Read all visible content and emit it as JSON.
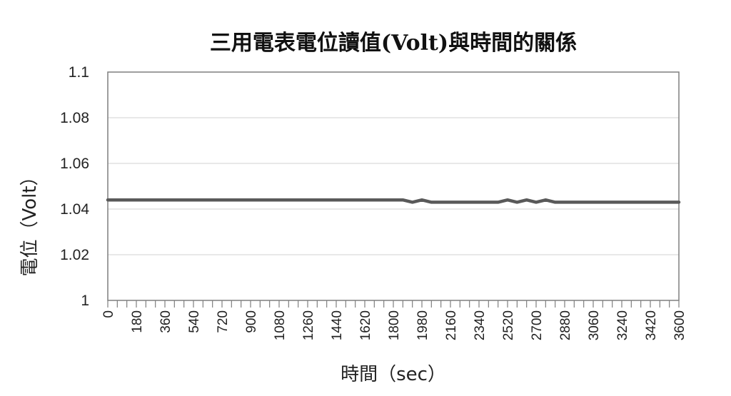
{
  "chart_data": {
    "type": "line",
    "title": "三用電表電位讀值(Volt)與時間的關係",
    "xlabel": "時間（sec）",
    "ylabel": "電位（Volt）",
    "ylim": [
      1,
      1.1
    ],
    "yticks": [
      "1",
      "1.02",
      "1.04",
      "1.06",
      "1.08",
      "1.1"
    ],
    "x_tick_labels": [
      "0",
      "180",
      "360",
      "540",
      "720",
      "900",
      "1080",
      "1260",
      "1440",
      "1620",
      "1800",
      "1980",
      "2160",
      "2340",
      "2520",
      "2700",
      "2880",
      "3060",
      "3240",
      "3420",
      "3600"
    ],
    "grid": "horizontal",
    "line_color": "#595959",
    "series": [
      {
        "x": [
          0,
          60,
          120,
          180,
          240,
          300,
          360,
          420,
          480,
          540,
          600,
          660,
          720,
          780,
          840,
          900,
          960,
          1020,
          1080,
          1140,
          1200,
          1260,
          1320,
          1380,
          1440,
          1500,
          1560,
          1620,
          1680,
          1740,
          1800,
          1860,
          1920,
          1980,
          2040,
          2100,
          2160,
          2220,
          2280,
          2340,
          2400,
          2460,
          2520,
          2580,
          2640,
          2700,
          2760,
          2820,
          2880,
          2940,
          3000,
          3060,
          3120,
          3180,
          3240,
          3300,
          3360,
          3420,
          3480,
          3540,
          3600
        ],
        "values": [
          1.044,
          1.044,
          1.044,
          1.044,
          1.044,
          1.044,
          1.044,
          1.044,
          1.044,
          1.044,
          1.044,
          1.044,
          1.044,
          1.044,
          1.044,
          1.044,
          1.044,
          1.044,
          1.044,
          1.044,
          1.044,
          1.044,
          1.044,
          1.044,
          1.044,
          1.044,
          1.044,
          1.044,
          1.044,
          1.044,
          1.044,
          1.044,
          1.043,
          1.044,
          1.043,
          1.043,
          1.043,
          1.043,
          1.043,
          1.043,
          1.043,
          1.043,
          1.044,
          1.043,
          1.044,
          1.043,
          1.044,
          1.043,
          1.043,
          1.043,
          1.043,
          1.043,
          1.043,
          1.043,
          1.043,
          1.043,
          1.043,
          1.043,
          1.043,
          1.043,
          1.043
        ]
      }
    ]
  }
}
